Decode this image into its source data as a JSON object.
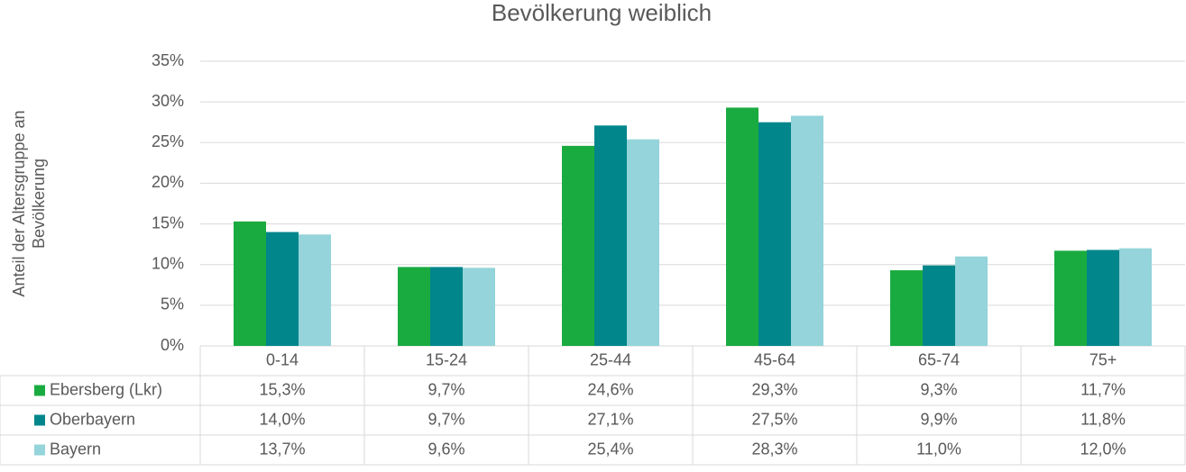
{
  "chart_data": {
    "type": "bar",
    "title": "Bevölkerung weiblich",
    "y_label": [
      "Anteil der Altersgruppe an",
      "Bevölkerung"
    ],
    "categories": [
      "0-14",
      "15-24",
      "25-44",
      "45-64",
      "65-74",
      "75+"
    ],
    "series": [
      {
        "name": "Ebersberg (Lkr)",
        "color": "#1aab40",
        "values": [
          15.3,
          9.7,
          24.6,
          29.3,
          9.3,
          11.7
        ],
        "value_labels": [
          "15,3%",
          "9,7%",
          "24,6%",
          "29,3%",
          "9,3%",
          "11,7%"
        ]
      },
      {
        "name": "Oberbayern",
        "color": "#00868b",
        "values": [
          14.0,
          9.7,
          27.1,
          27.5,
          9.9,
          11.8
        ],
        "value_labels": [
          "14,0%",
          "9,7%",
          "27,1%",
          "27,5%",
          "9,9%",
          "11,8%"
        ]
      },
      {
        "name": "Bayern",
        "color": "#94d4da",
        "values": [
          13.7,
          9.6,
          25.4,
          28.3,
          11.0,
          12.0
        ],
        "value_labels": [
          "13,7%",
          "9,6%",
          "25,4%",
          "28,3%",
          "11,0%",
          "12,0%"
        ]
      }
    ],
    "ylim": [
      0,
      35
    ],
    "yticks": [
      {
        "value": 0,
        "label": "0%"
      },
      {
        "value": 5,
        "label": "5%"
      },
      {
        "value": 10,
        "label": "10%"
      },
      {
        "value": 15,
        "label": "15%"
      },
      {
        "value": 20,
        "label": "20%"
      },
      {
        "value": 25,
        "label": "25%"
      },
      {
        "value": 30,
        "label": "30%"
      },
      {
        "value": 35,
        "label": "35%"
      }
    ],
    "grid": true
  }
}
